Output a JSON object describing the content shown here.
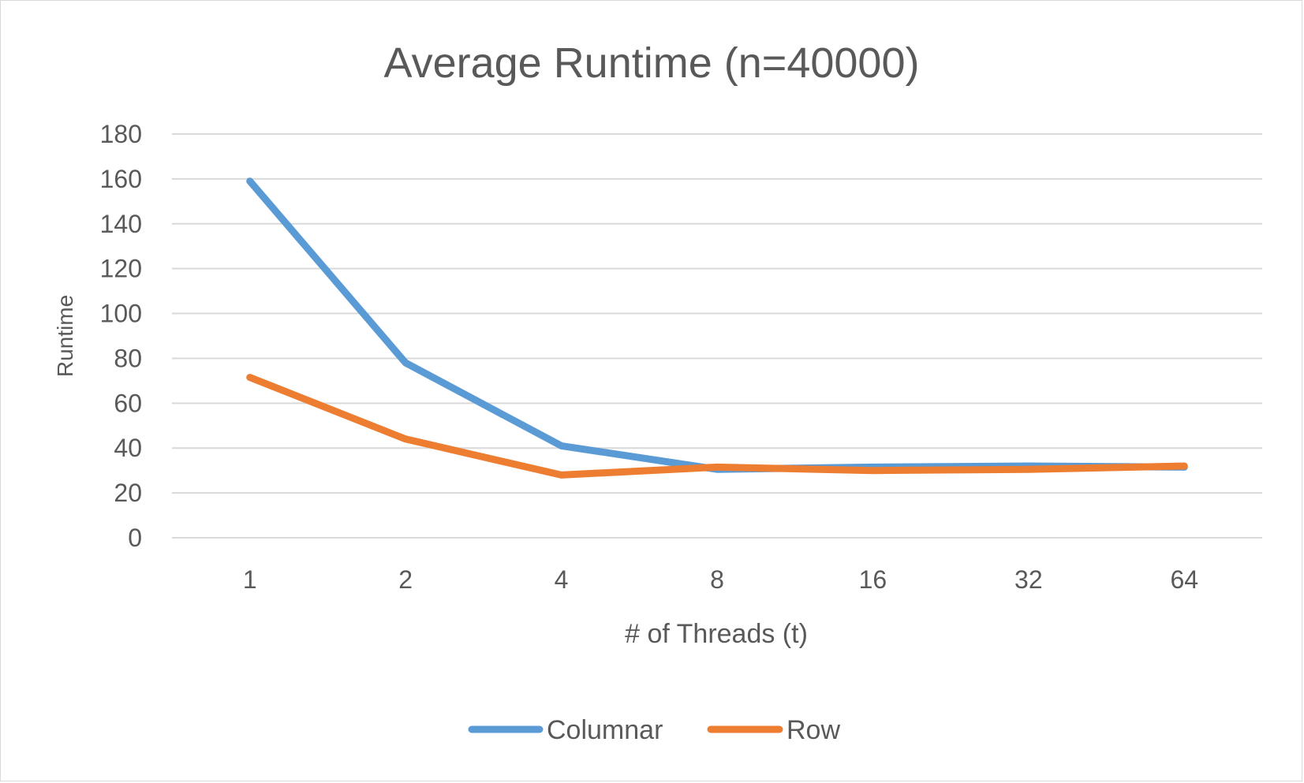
{
  "chart_data": {
    "type": "line",
    "title": "Average Runtime (n=40000)",
    "xlabel": "# of Threads (t)",
    "ylabel": "Runtime",
    "categories": [
      "1",
      "2",
      "4",
      "8",
      "16",
      "32",
      "64"
    ],
    "ylim": [
      0,
      180
    ],
    "yticks": [
      "0",
      "20",
      "40",
      "60",
      "80",
      "100",
      "120",
      "140",
      "160",
      "180"
    ],
    "grid": true,
    "legend_position": "bottom",
    "series": [
      {
        "name": "Columnar",
        "color": "#5b9bd5",
        "values": [
          159,
          78,
          41,
          30.5,
          31.5,
          32,
          31.5
        ]
      },
      {
        "name": "Row",
        "color": "#ed7d31",
        "values": [
          71.5,
          44,
          28,
          31.5,
          30,
          30.5,
          32
        ]
      }
    ]
  }
}
